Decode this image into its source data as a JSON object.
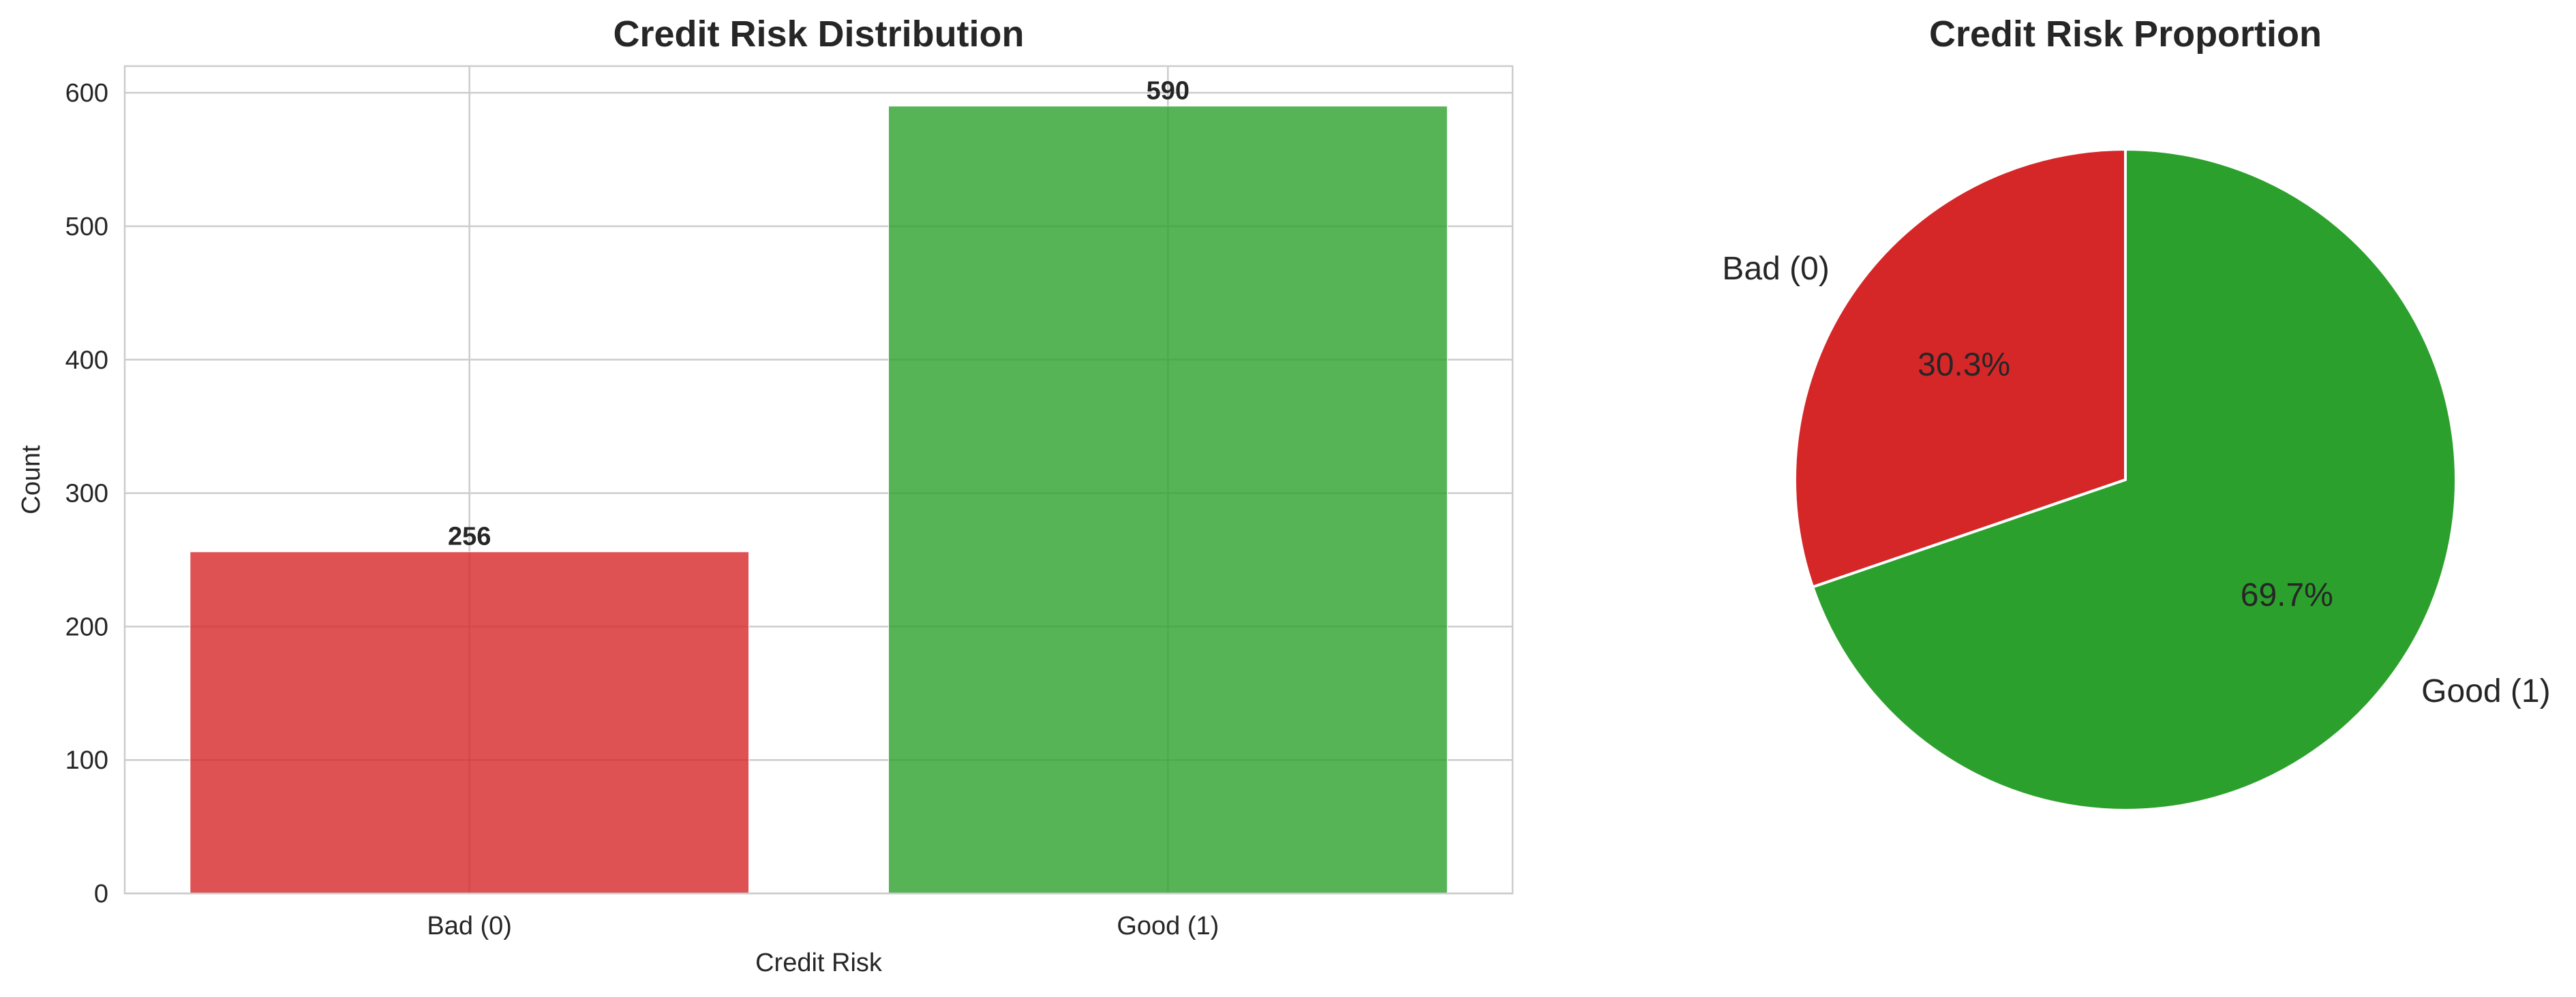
{
  "chart_data": [
    {
      "type": "bar",
      "title": "Credit Risk Distribution",
      "xlabel": "Credit Risk",
      "ylabel": "Count",
      "categories": [
        "Bad (0)",
        "Good (1)"
      ],
      "values": [
        256,
        590
      ],
      "data_labels": [
        "256",
        "590"
      ],
      "colors": [
        "#d62728",
        "#2ca02c"
      ],
      "ylim": [
        0,
        620
      ],
      "yticks": [
        0,
        100,
        200,
        300,
        400,
        500,
        600
      ],
      "grid": true
    },
    {
      "type": "pie",
      "title": "Credit Risk Proportion",
      "labels": [
        "Bad (0)",
        "Good (1)"
      ],
      "values": [
        256,
        590
      ],
      "percent_labels": [
        "30.3%",
        "69.7%"
      ],
      "colors": [
        "#d62728",
        "#2ca02c"
      ],
      "start_angle_deg": 90,
      "direction": "counterclockwise"
    }
  ]
}
